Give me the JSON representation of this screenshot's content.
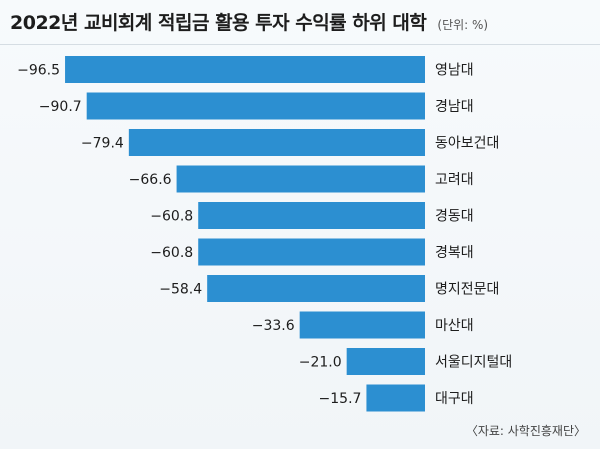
{
  "header": {
    "title": "2022년 교비회계 적립금 활용 투자 수익률 하위 대학",
    "unit": "(단위: %)"
  },
  "footer": {
    "source": "〈자료: 사학진흥재단〉"
  },
  "colors": {
    "bar": "#2c8fd1",
    "background": "#f4f7fa",
    "text": "#1d1d1d"
  },
  "chart_data": {
    "type": "bar",
    "orientation": "horizontal",
    "title": "2022년 교비회계 적립금 활용 투자 수익률 하위 대학",
    "unit": "(단위: %)",
    "categories": [
      "영남대",
      "경남대",
      "동아보건대",
      "고려대",
      "경동대",
      "경복대",
      "명지전문대",
      "마산대",
      "서울디지털대",
      "대구대"
    ],
    "values": [
      -96.5,
      -90.7,
      -79.4,
      -66.6,
      -60.8,
      -60.8,
      -58.4,
      -33.6,
      -21.0,
      -15.7
    ],
    "value_labels": [
      "−96.5",
      "−90.7",
      "−79.4",
      "−66.6",
      "−60.8",
      "−60.8",
      "−58.4",
      "−33.6",
      "−21.0",
      "−15.7"
    ],
    "xlim": [
      -100,
      0
    ],
    "grid": false,
    "legend": "none"
  }
}
